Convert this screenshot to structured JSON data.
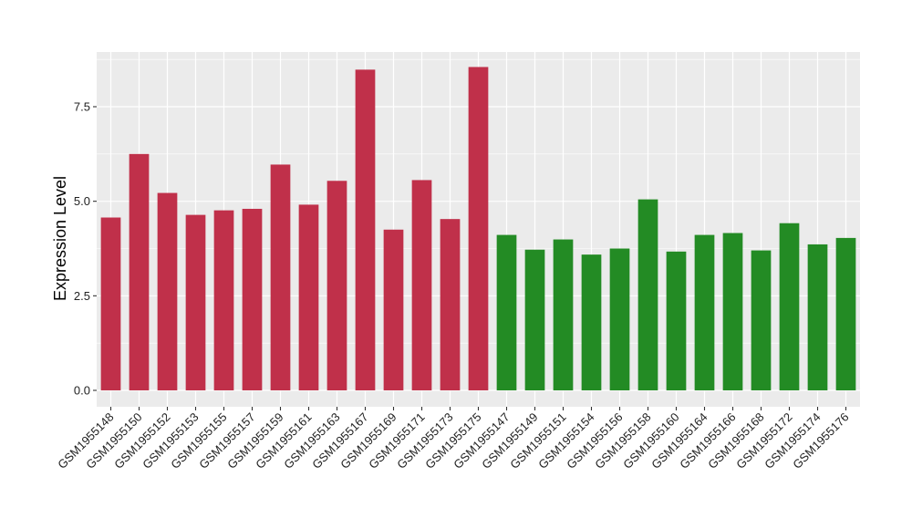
{
  "chart_data": {
    "type": "bar",
    "title": "",
    "xlabel": "",
    "ylabel": "Expression Level",
    "ylim": [
      0,
      8.8
    ],
    "yticks": [
      0.0,
      2.5,
      5.0,
      7.5
    ],
    "ytick_labels": [
      "0.0",
      "2.5",
      "5.0",
      "7.5"
    ],
    "grid": true,
    "legend": "none",
    "colors": {
      "group_a": "#c0304a",
      "group_b": "#238b24",
      "panel": "#ebebeb",
      "gridline": "#ffffff"
    },
    "categories": [
      "GSM1955148",
      "GSM1955150",
      "GSM1955152",
      "GSM1955153",
      "GSM1955155",
      "GSM1955157",
      "GSM1955159",
      "GSM1955161",
      "GSM1955163",
      "GSM1955167",
      "GSM1955169",
      "GSM1955171",
      "GSM1955173",
      "GSM1955175",
      "GSM1955147",
      "GSM1955149",
      "GSM1955151",
      "GSM1955154",
      "GSM1955156",
      "GSM1955158",
      "GSM1955160",
      "GSM1955164",
      "GSM1955166",
      "GSM1955168",
      "GSM1955172",
      "GSM1955174",
      "GSM1955176"
    ],
    "values": [
      4.57,
      6.25,
      5.22,
      4.64,
      4.76,
      4.8,
      5.97,
      4.91,
      5.54,
      8.48,
      4.25,
      5.56,
      4.53,
      8.55,
      4.11,
      3.72,
      3.99,
      3.59,
      3.75,
      5.05,
      3.67,
      4.11,
      4.16,
      3.7,
      4.42,
      3.86,
      4.03
    ],
    "groups": [
      "a",
      "a",
      "a",
      "a",
      "a",
      "a",
      "a",
      "a",
      "a",
      "a",
      "a",
      "a",
      "a",
      "a",
      "b",
      "b",
      "b",
      "b",
      "b",
      "b",
      "b",
      "b",
      "b",
      "b",
      "b",
      "b",
      "b"
    ]
  }
}
